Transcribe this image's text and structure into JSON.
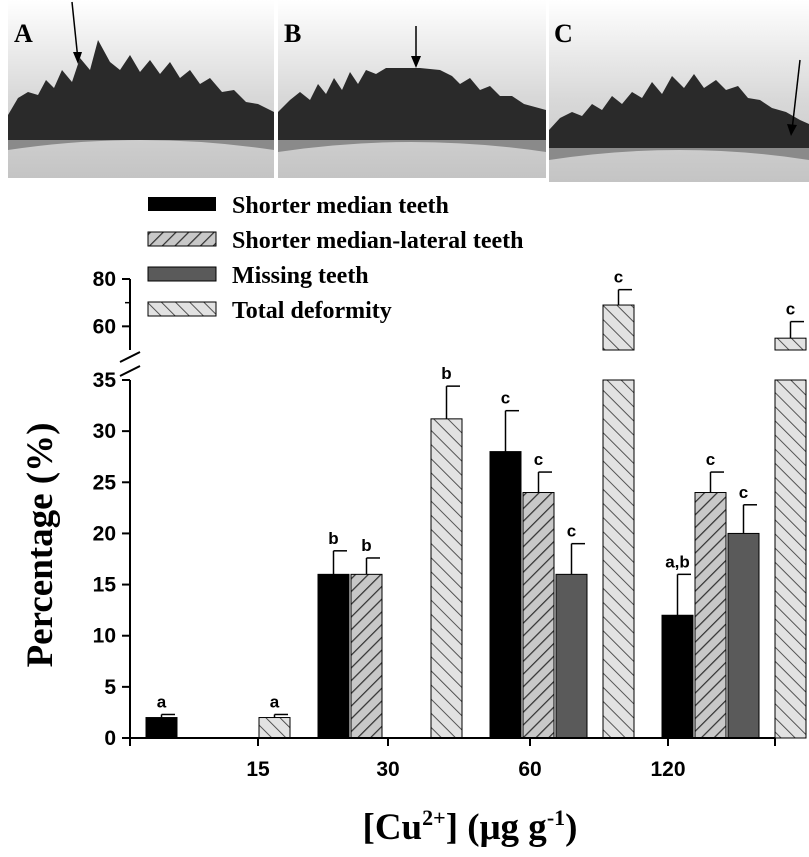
{
  "panels": [
    {
      "label": "A"
    },
    {
      "label": "B"
    },
    {
      "label": "C"
    }
  ],
  "colors": {
    "median": "#000000",
    "median_lateral": "#c8c8c8",
    "missing": "#5a5a5a",
    "total": "#e2e2e2",
    "axis": "#000000"
  },
  "chart_data": {
    "type": "bar",
    "categories": [
      "15",
      "30",
      "60",
      "120"
    ],
    "series": [
      {
        "name": "Shorter median teeth",
        "values": [
          2,
          16,
          28,
          12
        ],
        "errors": [
          0.3,
          2.3,
          4,
          4
        ],
        "letters": [
          "a",
          "b",
          "c",
          "a,b"
        ],
        "style": "solid-black"
      },
      {
        "name": "Shorter median-lateral teeth",
        "values": [
          0,
          16,
          24,
          24
        ],
        "errors": [
          0,
          1.6,
          2,
          2
        ],
        "letters": [
          "",
          "b",
          "c",
          "c"
        ],
        "style": "hatch-back"
      },
      {
        "name": "Missing teeth",
        "values": [
          0,
          0,
          16,
          20
        ],
        "errors": [
          0,
          0,
          3,
          2.8
        ],
        "letters": [
          "",
          "",
          "c",
          "c"
        ],
        "style": "solid-gray"
      },
      {
        "name": "Total deformity",
        "values": [
          2,
          31.2,
          69,
          55
        ],
        "errors": [
          0.3,
          3.2,
          6.5,
          7
        ],
        "letters": [
          "a",
          "b",
          "c",
          "c"
        ],
        "style": "hatch-forward"
      }
    ],
    "xlabel_main": "[Cu",
    "xlabel_sup1": "2+",
    "xlabel_mid": "] (μg g",
    "xlabel_sup2": "-1",
    "xlabel_end": ")",
    "ylabel": "Percentage (%)",
    "yticks_lower": [
      0,
      5,
      10,
      15,
      20,
      25,
      30,
      35
    ],
    "yticks_upper": [
      60,
      80
    ],
    "ylim_lower": [
      0,
      35
    ],
    "ylim_upper": [
      50,
      80
    ],
    "legend_position": "top-left",
    "grid": false
  }
}
